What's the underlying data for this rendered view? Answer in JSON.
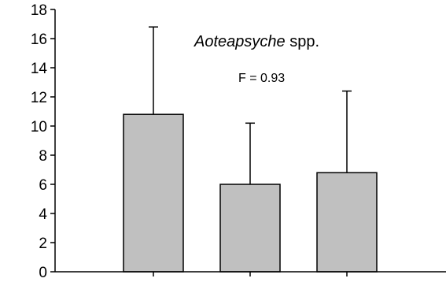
{
  "chart_data": {
    "type": "bar",
    "title_italic": "Aoteapsyche",
    "title_rest": " spp.",
    "annotation": "F = 0.93",
    "categories": [
      "",
      "",
      ""
    ],
    "values": [
      10.8,
      6.0,
      6.8
    ],
    "error_upper": [
      16.8,
      10.2,
      12.4
    ],
    "ylim": [
      0,
      18
    ],
    "yticks": [
      0,
      2,
      4,
      6,
      8,
      10,
      12,
      14,
      16,
      18
    ],
    "ytick_labels": [
      "0",
      "2",
      "4",
      "6",
      "8",
      "10",
      "12",
      "14",
      "16",
      "18"
    ],
    "xlabel": "",
    "ylabel": "",
    "grid": false,
    "colors": {
      "bar_fill": "#c0c0c0",
      "bar_stroke": "#000000",
      "axis": "#000000"
    }
  }
}
